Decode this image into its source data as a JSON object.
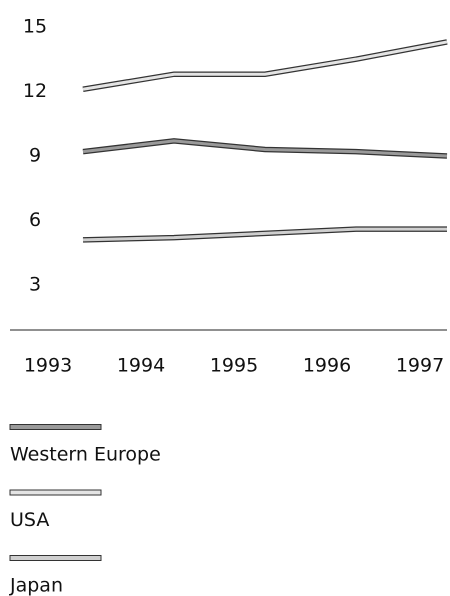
{
  "chart_data": {
    "type": "line",
    "categories": [
      "1993",
      "1994",
      "1995",
      "1996",
      "1997"
    ],
    "series": [
      {
        "name": "Western Europe",
        "color": "#9a9a9a",
        "values": [
          9.2,
          9.7,
          9.3,
          9.2,
          9.0
        ]
      },
      {
        "name": "USA",
        "color": "#e4e4e4",
        "values": [
          12.1,
          12.8,
          12.8,
          13.5,
          14.3
        ]
      },
      {
        "name": "Japan",
        "color": "#cfcfcf",
        "values": [
          5.1,
          5.2,
          5.4,
          5.6,
          5.6
        ]
      }
    ],
    "ylim": [
      1,
      15.6
    ],
    "yticks": [
      3,
      6,
      9,
      12,
      15
    ],
    "grid": false
  }
}
